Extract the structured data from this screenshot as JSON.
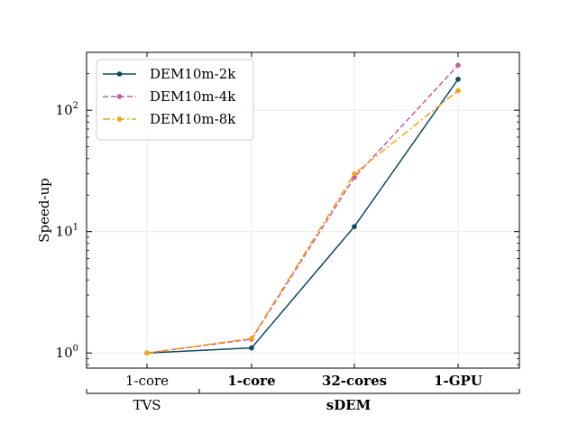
{
  "chart_data": {
    "type": "line",
    "title": "",
    "xlabel": "",
    "ylabel": "Speed-up",
    "yscale": "log",
    "ylim": [
      0.75,
      300
    ],
    "y_ticks": [
      1,
      10,
      100
    ],
    "y_tick_labels": [
      {
        "base": "10",
        "exp": "0"
      },
      {
        "base": "10",
        "exp": "1"
      },
      {
        "base": "10",
        "exp": "2"
      }
    ],
    "categories": [
      "1-core",
      "1-core",
      "32-cores",
      "1-GPU"
    ],
    "category_bold": [
      false,
      true,
      true,
      true
    ],
    "groups": [
      {
        "label": "TVS",
        "start": 0,
        "end": 0
      },
      {
        "label": "sDEM",
        "start": 1,
        "end": 3
      }
    ],
    "grid": true,
    "legend_position": "top-left",
    "series": [
      {
        "name": "DEM10m-2k",
        "color": "#0d4a5e",
        "dash": "solid",
        "values": [
          1.0,
          1.1,
          11.0,
          180
        ]
      },
      {
        "name": "DEM10m-4k",
        "color": "#c75b9f",
        "dash": "dashed",
        "values": [
          1.0,
          1.3,
          28.0,
          235
        ]
      },
      {
        "name": "DEM10m-8k",
        "color": "#f5a30f",
        "dash": "dashdot",
        "values": [
          1.0,
          1.32,
          30.0,
          145
        ]
      }
    ]
  }
}
